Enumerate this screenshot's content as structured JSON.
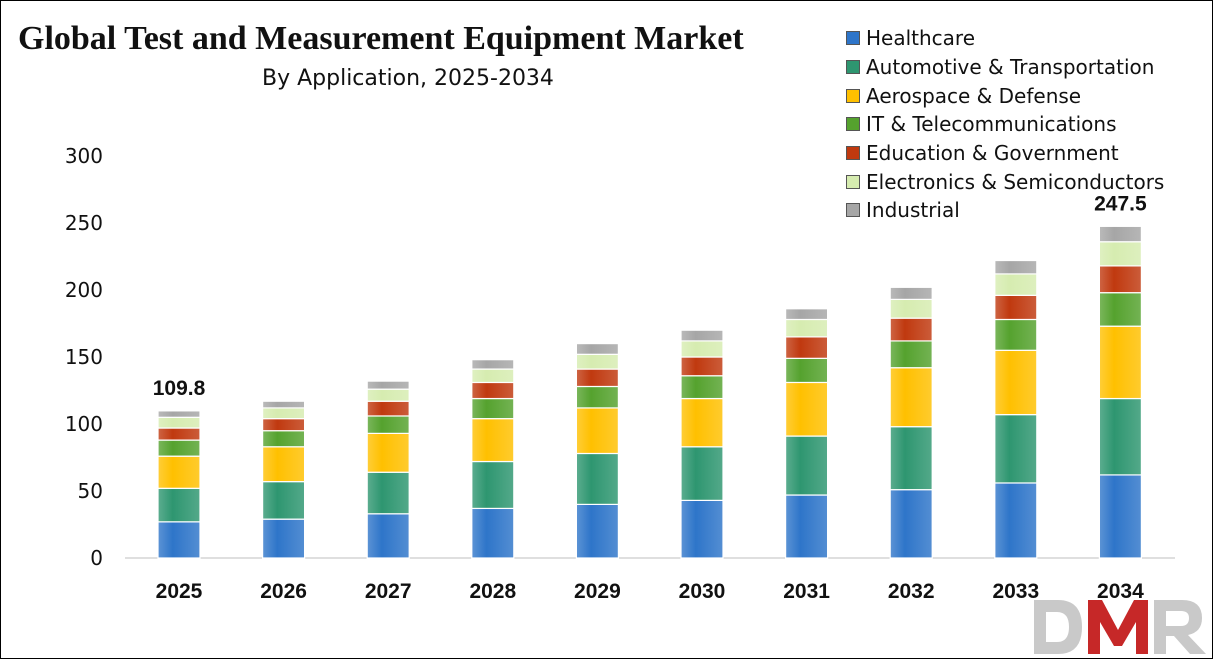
{
  "chart_data": {
    "type": "bar",
    "stacked": true,
    "title": "Global Test and Measurement Equipment Market",
    "subtitle": "By Application, 2025-2034",
    "categories": [
      "2025",
      "2026",
      "2027",
      "2028",
      "2029",
      "2030",
      "2031",
      "2032",
      "2033",
      "2034"
    ],
    "ylim": [
      0,
      300
    ],
    "yticks": [
      0,
      50,
      100,
      150,
      200,
      250,
      300
    ],
    "grid": false,
    "legend_position": "top-right",
    "series": [
      {
        "name": "Healthcare",
        "color": "#2e75c9",
        "values": [
          27,
          29,
          33,
          37,
          40,
          43,
          47,
          51,
          56,
          62
        ]
      },
      {
        "name": "Automotive & Transportation",
        "color": "#2e9670",
        "values": [
          25,
          28,
          31,
          35,
          38,
          40,
          44,
          47,
          51,
          57
        ]
      },
      {
        "name": "Aerospace & Defense",
        "color": "#ffc000",
        "values": [
          24,
          26,
          29,
          32,
          34,
          36,
          40,
          44,
          48,
          54
        ]
      },
      {
        "name": "IT & Telecommunications",
        "color": "#55a22e",
        "values": [
          12,
          12,
          13,
          15,
          16,
          17,
          18,
          20,
          23,
          25
        ]
      },
      {
        "name": "Education & Government",
        "color": "#c0390f",
        "values": [
          9,
          9,
          11,
          12,
          13,
          14,
          16,
          17,
          18,
          20
        ]
      },
      {
        "name": "Electronics & Semiconductors",
        "color": "#d6ecb0",
        "values": [
          8,
          8,
          9,
          10,
          11,
          12,
          13,
          14,
          16,
          18
        ]
      },
      {
        "name": "Industrial",
        "color": "#a6a6a6",
        "values": [
          4.8,
          5,
          6,
          7,
          8,
          8,
          8,
          9,
          10,
          11.5
        ]
      }
    ],
    "annotations": [
      {
        "category": "2025",
        "label": "109.8"
      },
      {
        "category": "2034",
        "label": "247.5"
      }
    ]
  },
  "logo": {
    "text": "DMR"
  }
}
